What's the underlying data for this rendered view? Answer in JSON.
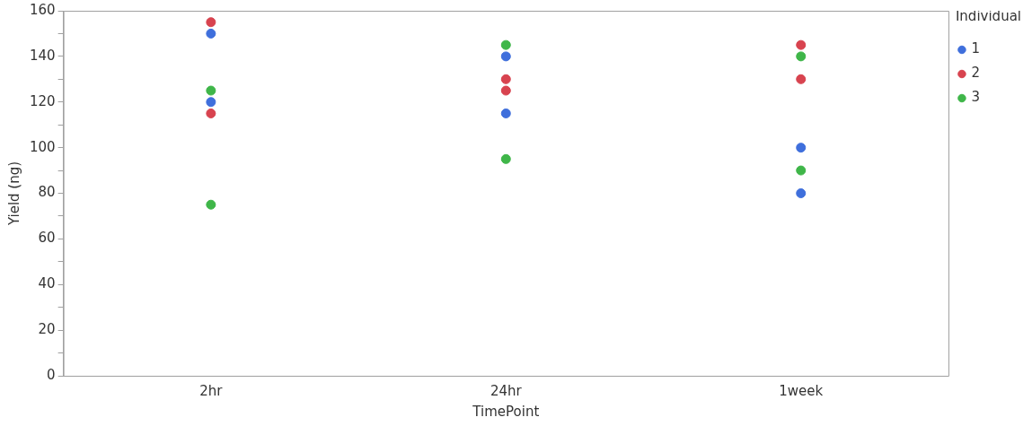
{
  "chart_data": {
    "type": "scatter",
    "xlabel": "TimePoint",
    "ylabel": "Yield (ng)",
    "legend_title": "Individual",
    "categories": [
      "2hr",
      "24hr",
      "1week"
    ],
    "series": [
      {
        "name": "1",
        "color": "#3f6fdc",
        "x": [
          "2hr",
          "2hr",
          "24hr",
          "24hr",
          "1week",
          "1week"
        ],
        "values": [
          150,
          120,
          140,
          115,
          100,
          80
        ]
      },
      {
        "name": "2",
        "color": "#d8434f",
        "x": [
          "2hr",
          "2hr",
          "24hr",
          "24hr",
          "1week",
          "1week"
        ],
        "values": [
          155,
          115,
          130,
          125,
          145,
          130
        ]
      },
      {
        "name": "3",
        "color": "#3fb649",
        "x": [
          "2hr",
          "2hr",
          "24hr",
          "24hr",
          "1week",
          "1week"
        ],
        "values": [
          125,
          75,
          145,
          95,
          140,
          90
        ]
      }
    ],
    "ylim": [
      0,
      160
    ],
    "yticks": [
      0,
      {
        "value": 10,
        "label": null
      },
      20,
      {
        "value": 30,
        "label": null
      },
      40,
      {
        "value": 50,
        "label": null
      },
      60,
      {
        "value": 70,
        "label": null
      },
      80,
      {
        "value": 90,
        "label": null
      },
      100,
      {
        "value": 110,
        "label": null
      },
      120,
      {
        "value": 130,
        "label": null
      },
      140,
      {
        "value": 150,
        "label": null
      },
      160
    ],
    "grid": false,
    "legend": "top right",
    "marker": "circle"
  }
}
